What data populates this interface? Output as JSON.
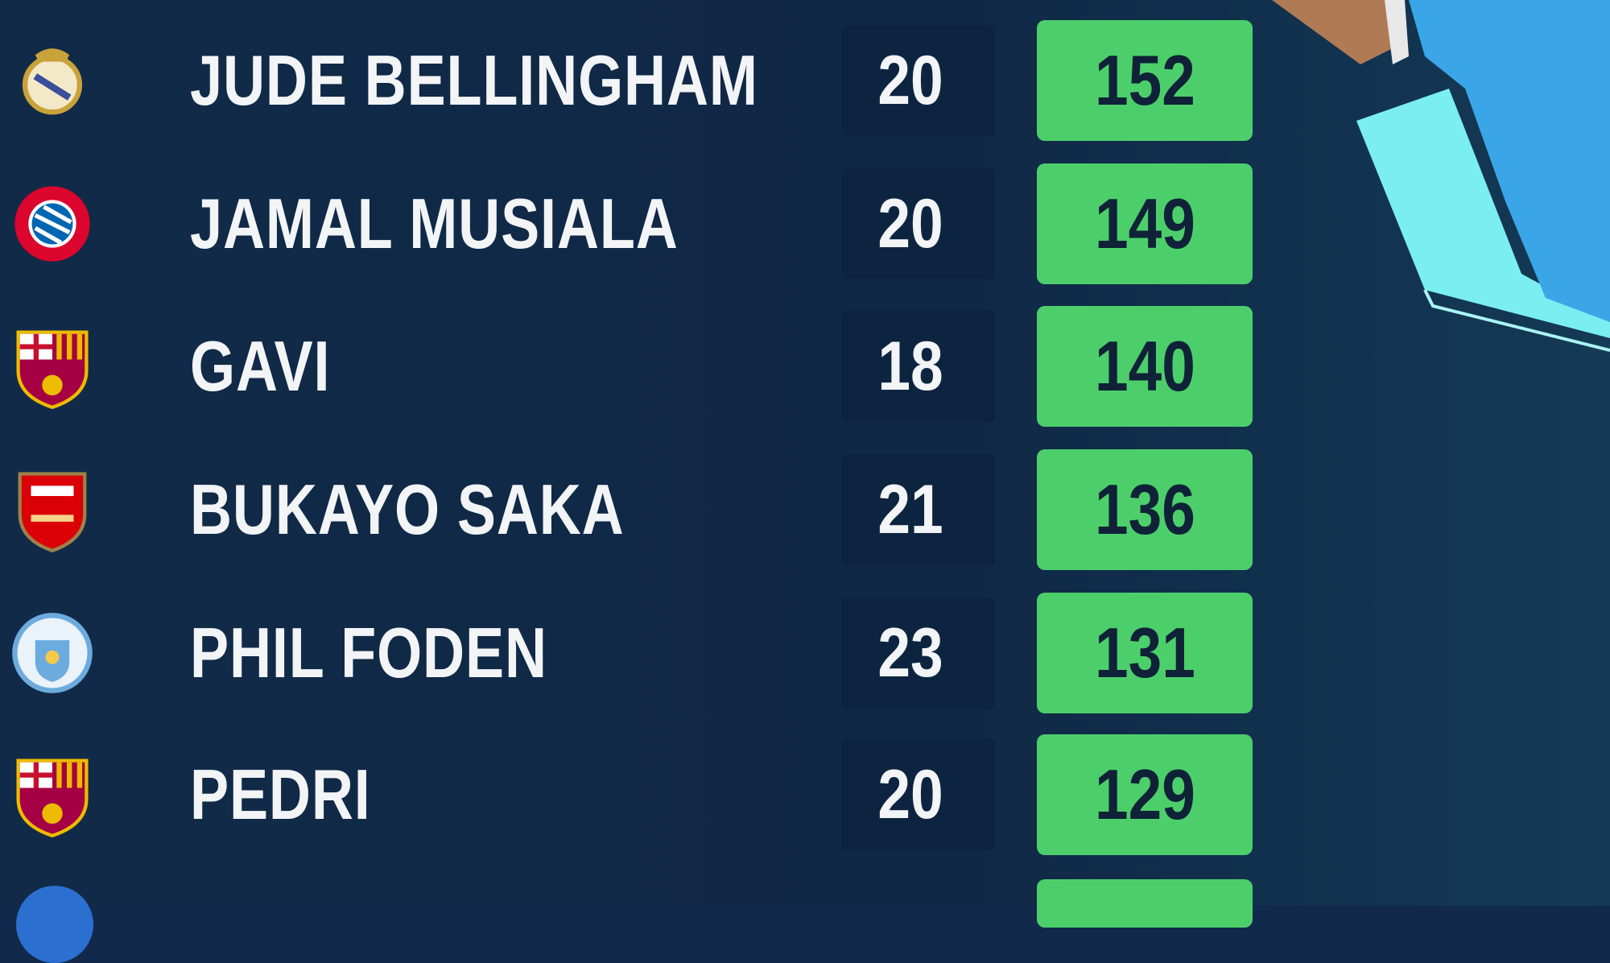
{
  "players": [
    {
      "club": "Real Madrid",
      "name": "JUDE BELLINGHAM",
      "age": "20",
      "score": "152"
    },
    {
      "club": "Bayern Munchen",
      "name": "JAMAL MUSIALA",
      "age": "20",
      "score": "149"
    },
    {
      "club": "FC Barcelona",
      "name": "GAVI",
      "age": "18",
      "score": "140"
    },
    {
      "club": "Arsenal",
      "name": "BUKAYO SAKA",
      "age": "21",
      "score": "136"
    },
    {
      "club": "Manchester City",
      "name": "PHIL FODEN",
      "age": "23",
      "score": "131"
    },
    {
      "club": "FC Barcelona",
      "name": "PEDRI",
      "age": "20",
      "score": "129"
    }
  ],
  "colors": {
    "background": "#11294a",
    "score_box": "#4ccf6b",
    "accent_cyan": "#7aeef0",
    "kit_blue": "#3aa6e8"
  }
}
